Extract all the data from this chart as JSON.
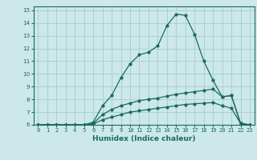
{
  "xlabel": "Humidex (Indice chaleur)",
  "bg_color": "#cce8e8",
  "grid_color": "#aad0d0",
  "line_color": "#1a6b5a",
  "xlim": [
    -0.5,
    23.5
  ],
  "ylim": [
    6,
    15.3
  ],
  "yticks": [
    6,
    7,
    8,
    9,
    10,
    11,
    12,
    13,
    14,
    15
  ],
  "xticks": [
    0,
    1,
    2,
    3,
    4,
    5,
    6,
    7,
    8,
    9,
    10,
    11,
    12,
    13,
    14,
    15,
    16,
    17,
    18,
    19,
    20,
    21,
    22,
    23
  ],
  "line1_x": [
    0,
    1,
    2,
    3,
    4,
    5,
    6,
    7,
    8,
    9,
    10,
    11,
    12,
    13,
    14,
    15,
    16,
    17,
    18,
    19,
    20,
    21,
    22,
    23
  ],
  "line1_y": [
    6,
    6,
    6,
    6,
    6,
    6,
    6.2,
    7.5,
    8.3,
    9.7,
    10.8,
    11.5,
    11.7,
    12.2,
    13.8,
    14.7,
    14.6,
    13.1,
    11.0,
    9.5,
    8.2,
    8.3,
    6.1,
    6.0
  ],
  "line2_x": [
    0,
    1,
    2,
    3,
    4,
    5,
    6,
    7,
    8,
    9,
    10,
    11,
    12,
    13,
    14,
    15,
    16,
    17,
    18,
    19,
    20,
    21,
    22,
    23
  ],
  "line2_y": [
    6,
    6,
    6,
    6,
    6,
    6,
    6.1,
    6.8,
    7.2,
    7.5,
    7.7,
    7.9,
    8.0,
    8.1,
    8.25,
    8.4,
    8.5,
    8.6,
    8.7,
    8.8,
    8.2,
    8.3,
    6.1,
    6.0
  ],
  "line3_x": [
    0,
    1,
    2,
    3,
    4,
    5,
    6,
    7,
    8,
    9,
    10,
    11,
    12,
    13,
    14,
    15,
    16,
    17,
    18,
    19,
    20,
    21,
    22,
    23
  ],
  "line3_y": [
    6,
    6,
    6,
    6,
    6,
    6,
    6.05,
    6.4,
    6.6,
    6.8,
    7.0,
    7.1,
    7.2,
    7.3,
    7.4,
    7.5,
    7.6,
    7.65,
    7.7,
    7.75,
    7.5,
    7.3,
    6.1,
    6.0
  ]
}
